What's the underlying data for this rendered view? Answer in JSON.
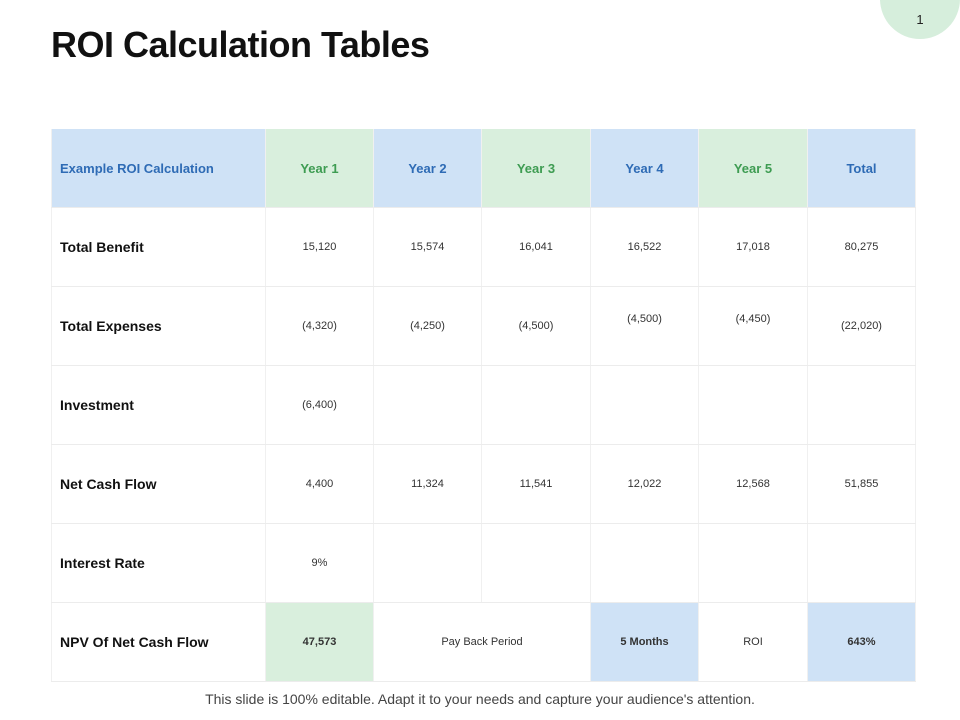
{
  "page_number": "1",
  "title": "ROI Calculation Tables",
  "table": {
    "headers": [
      "Example ROI Calculation",
      "Year 1",
      "Year 2",
      "Year 3",
      "Year 4",
      "Year 5",
      "Total"
    ],
    "rows": [
      {
        "label": "Total Benefit",
        "values": [
          "15,120",
          "15,574",
          "16,041",
          "16,522",
          "17,018",
          "80,275"
        ]
      },
      {
        "label": "Total Expenses",
        "values": [
          "(4,320)",
          "(4,250)",
          "(4,500)",
          "(4,500)",
          "(4,450)",
          "(22,020)"
        ]
      },
      {
        "label": "Investment",
        "values": [
          "(6,400)",
          "",
          "",
          "",
          "",
          ""
        ]
      },
      {
        "label": "Net Cash Flow",
        "values": [
          "4,400",
          "11,324",
          "11,541",
          "12,022",
          "12,568",
          "51,855"
        ]
      },
      {
        "label": "Interest Rate",
        "values": [
          "9%",
          "",
          "",
          "",
          "",
          ""
        ]
      }
    ],
    "npv_row": {
      "label": "NPV Of Net Cash Flow",
      "npv_value": "47,573",
      "payback_label": "Pay Back Period",
      "payback_value": "5 Months",
      "roi_label": "ROI",
      "roi_value": "643%"
    }
  },
  "colors": {
    "header_green": "#d9efdd",
    "header_blue": "#cfe2f6",
    "text_green": "#3e9c52",
    "text_blue": "#2e6bb5"
  },
  "footer": "This slide is 100% editable. Adapt it to your needs and capture your audience's attention."
}
